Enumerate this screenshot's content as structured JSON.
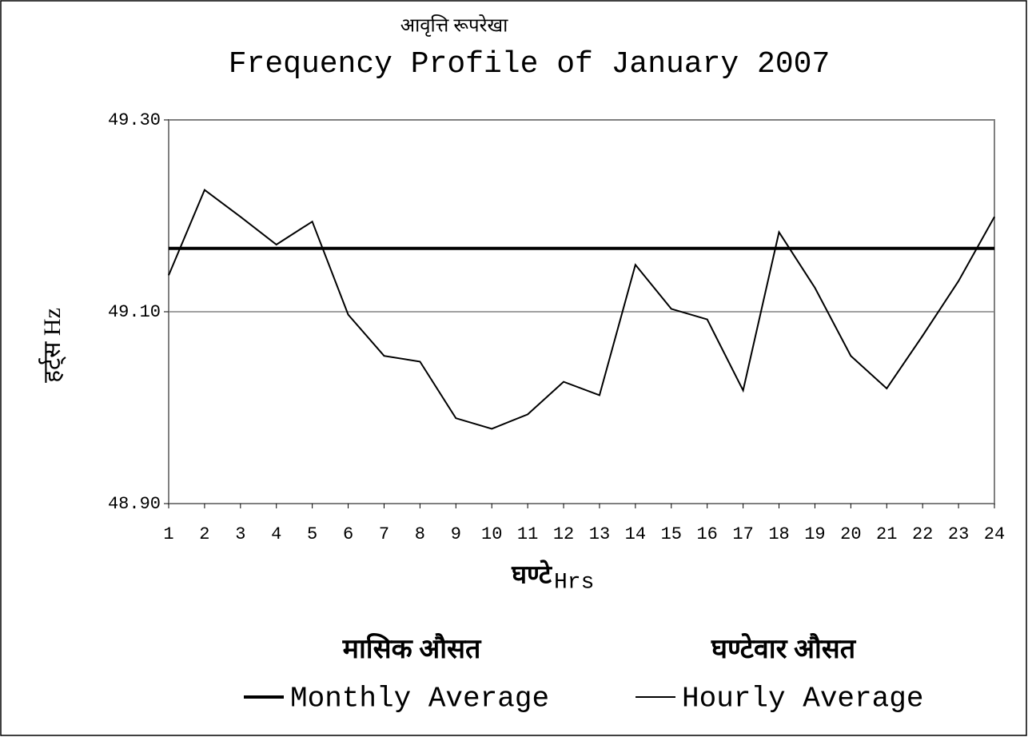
{
  "chart_data": {
    "type": "line",
    "subtitle": "आवृत्ति रूपरेखा",
    "title": "Frequency Profile of January 2007",
    "y_label": "हर्ट्स Hz",
    "x_label_hi": "घण्टे",
    "x_label": "Hrs",
    "categories": [
      "1",
      "2",
      "3",
      "4",
      "5",
      "6",
      "7",
      "8",
      "9",
      "10",
      "11",
      "12",
      "13",
      "14",
      "15",
      "16",
      "17",
      "18",
      "19",
      "20",
      "21",
      "22",
      "23",
      "24"
    ],
    "series": [
      {
        "name": "Monthly Average",
        "name_hi": "मासिक औसत",
        "color": "#000000",
        "width": 4,
        "values": [
          49.166,
          49.166,
          49.166,
          49.166,
          49.166,
          49.166,
          49.166,
          49.166,
          49.166,
          49.166,
          49.166,
          49.166,
          49.166,
          49.166,
          49.166,
          49.166,
          49.166,
          49.166,
          49.166,
          49.166,
          49.166,
          49.166,
          49.166,
          49.166
        ]
      },
      {
        "name": "Hourly Average",
        "name_hi": "घण्टेवार औसत",
        "color": "#000000",
        "width": 2,
        "values": [
          49.138,
          49.227,
          49.199,
          49.17,
          49.194,
          49.097,
          49.054,
          49.048,
          48.989,
          48.978,
          48.993,
          49.027,
          49.013,
          49.149,
          49.103,
          49.092,
          49.018,
          49.183,
          49.125,
          49.054,
          49.02,
          49.075,
          49.132,
          49.199
        ]
      }
    ],
    "ylim": [
      48.9,
      49.3
    ],
    "yticks": [
      {
        "value": 48.9,
        "label": "48.90"
      },
      {
        "value": 49.1,
        "label": "49.10"
      },
      {
        "value": 49.3,
        "label": "49.30"
      }
    ],
    "grid": true
  }
}
